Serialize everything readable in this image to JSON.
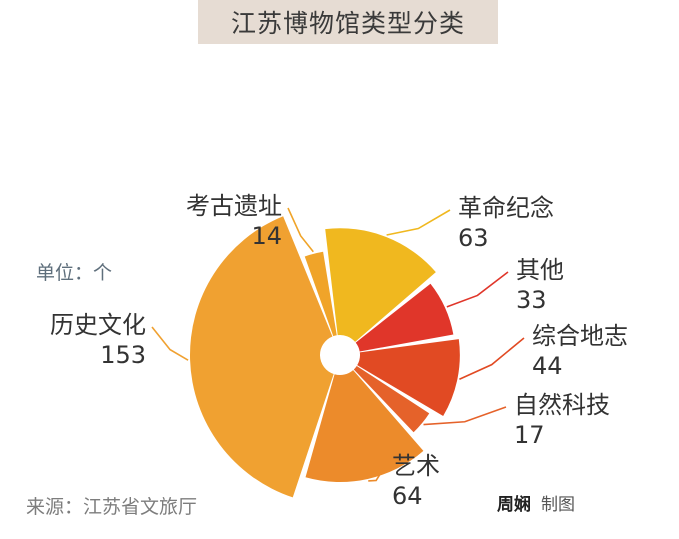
{
  "title": "江苏博物馆类型分类",
  "unit_label": "单位：个",
  "source": "来源：江苏省文旅厅",
  "credit": {
    "author": "周娴",
    "suffix": "制图"
  },
  "colors": {
    "title_bg": "#e6dcd3",
    "slices": [
      "#f0b81f",
      "#e0362a",
      "#e14a23",
      "#e5622a",
      "#ec8b2b",
      "#f0a131",
      "#f0a429"
    ]
  },
  "chart_data": {
    "type": "pie",
    "title": "江苏博物馆类型分类",
    "unit": "个",
    "series": [
      {
        "label": "革命纪念",
        "value": 63
      },
      {
        "label": "其他",
        "value": 33
      },
      {
        "label": "综合地志",
        "value": 44
      },
      {
        "label": "自然科技",
        "value": 17
      },
      {
        "label": "艺术",
        "value": 64
      },
      {
        "label": "历史文化",
        "value": 153
      },
      {
        "label": "考古遗址",
        "value": 14
      }
    ]
  }
}
